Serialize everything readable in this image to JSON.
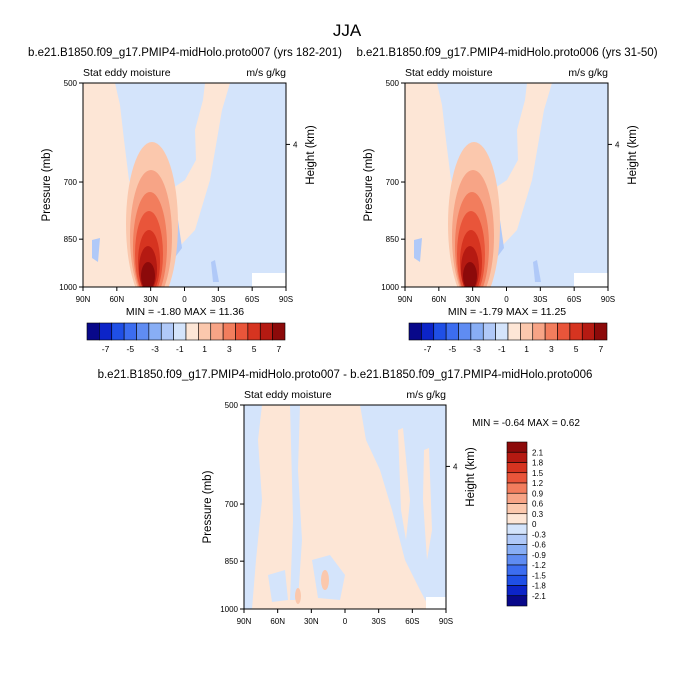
{
  "chart_data": [
    {
      "type": "contour",
      "figure_title": "JJA",
      "title": "b.e21.B1850.f09_g17.PMIP4-midHolo.proto007 (yrs 182-201)",
      "left_label": "Stat eddy moisture",
      "right_label": "m/s g/kg",
      "ylabel": "Pressure (mb)",
      "y2label": "Height (km)",
      "y2ticks": [
        "4"
      ],
      "xticks": [
        "90N",
        "60N",
        "30N",
        "0",
        "30S",
        "60S",
        "90S"
      ],
      "yticks": [
        "500",
        "700",
        "850",
        "1000"
      ],
      "ylim": [
        1000,
        500
      ],
      "min_max": "MIN = -1.80   MAX = 11.36",
      "min": -1.8,
      "max": 11.36,
      "maximum_location": {
        "lat": "30N",
        "pressure": 950
      },
      "colorbar_labels": [
        "-7",
        "-5",
        "-3",
        "-1",
        "1",
        "3",
        "5",
        "7"
      ]
    },
    {
      "type": "contour",
      "title": "b.e21.B1850.f09_g17.PMIP4-midHolo.proto006 (yrs 31-50)",
      "left_label": "Stat eddy moisture",
      "right_label": "m/s g/kg",
      "ylabel": "Pressure (mb)",
      "y2label": "Height (km)",
      "y2ticks": [
        "4"
      ],
      "xticks": [
        "90N",
        "60N",
        "30N",
        "0",
        "30S",
        "60S",
        "90S"
      ],
      "yticks": [
        "500",
        "700",
        "850",
        "1000"
      ],
      "ylim": [
        1000,
        500
      ],
      "min_max": "MIN = -1.79   MAX = 11.25",
      "min": -1.79,
      "max": 11.25,
      "maximum_location": {
        "lat": "30N",
        "pressure": 950
      },
      "colorbar_labels": [
        "-7",
        "-5",
        "-3",
        "-1",
        "1",
        "3",
        "5",
        "7"
      ]
    },
    {
      "type": "contour",
      "title": "b.e21.B1850.f09_g17.PMIP4-midHolo.proto007 - b.e21.B1850.f09_g17.PMIP4-midHolo.proto006",
      "left_label": "Stat eddy moisture",
      "right_label": "m/s g/kg",
      "ylabel": "Pressure (mb)",
      "y2label": "Height (km)",
      "y2ticks": [
        "4"
      ],
      "xticks": [
        "90N",
        "60N",
        "30N",
        "0",
        "30S",
        "60S",
        "90S"
      ],
      "yticks": [
        "500",
        "700",
        "850",
        "1000"
      ],
      "ylim": [
        1000,
        500
      ],
      "min_max": "MIN = -0.64   MAX =  0.62",
      "min": -0.64,
      "max": 0.62,
      "colorbar_labels": [
        "2.1",
        "1.8",
        "1.5",
        "1.2",
        "0.9",
        "0.6",
        "0.3",
        "0",
        "-0.3",
        "-0.6",
        "-0.9",
        "-1.2",
        "-1.5",
        "-1.8",
        "-2.1"
      ]
    }
  ],
  "colors": {
    "scale16": [
      "#08088a",
      "#0c24c8",
      "#1f4fe6",
      "#3c6df0",
      "#5f8cf2",
      "#88aef5",
      "#b0c9f8",
      "#d4e4fb",
      "#fde6d6",
      "#fbc8ad",
      "#f7a486",
      "#f27d5d",
      "#e9553a",
      "#d63420",
      "#b51a12",
      "#8c0a0a"
    ],
    "bg": "#ffffff"
  }
}
